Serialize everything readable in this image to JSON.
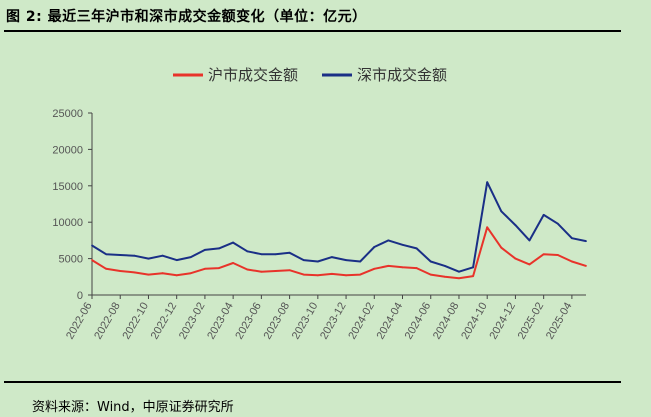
{
  "figure": {
    "title": "图 2:  最近三年沪市和深市成交金额变化（单位：亿元）",
    "source": "资料来源：Wind，中原证券研究所"
  },
  "chart_data": {
    "type": "line",
    "title": "",
    "xlabel": "",
    "ylabel": "",
    "ylim": [
      0,
      25000
    ],
    "yticks": [
      0,
      5000,
      10000,
      15000,
      20000,
      25000
    ],
    "xticks": [
      "2022-06",
      "2022-08",
      "2022-10",
      "2022-12",
      "2023-02",
      "2023-04",
      "2023-06",
      "2023-08",
      "2023-10",
      "2023-12",
      "2024-02",
      "2024-04",
      "2024-06",
      "2024-08",
      "2024-10",
      "2024-12",
      "2025-02",
      "2025-04"
    ],
    "x": [
      "2022-06",
      "2022-07",
      "2022-08",
      "2022-09",
      "2022-10",
      "2022-11",
      "2022-12",
      "2023-01",
      "2023-02",
      "2023-03",
      "2023-04",
      "2023-05",
      "2023-06",
      "2023-07",
      "2023-08",
      "2023-09",
      "2023-10",
      "2023-11",
      "2023-12",
      "2024-01",
      "2024-02",
      "2024-03",
      "2024-04",
      "2024-05",
      "2024-06",
      "2024-07",
      "2024-08",
      "2024-09",
      "2024-10",
      "2024-11",
      "2024-12",
      "2025-01",
      "2025-02",
      "2025-03",
      "2025-04",
      "2025-05"
    ],
    "legend_position": "top-center",
    "series": [
      {
        "name": "沪市成交金额",
        "color": "#e8332a",
        "values": [
          4800,
          3600,
          3300,
          3100,
          2800,
          3000,
          2700,
          3000,
          3600,
          3700,
          4400,
          3500,
          3200,
          3300,
          3400,
          2800,
          2700,
          2900,
          2700,
          2800,
          3600,
          4000,
          3800,
          3700,
          2800,
          2500,
          2300,
          2600,
          9300,
          6500,
          5000,
          4200,
          5600,
          5500,
          4600,
          4000
        ]
      },
      {
        "name": "深市成交金额",
        "color": "#1a2f86",
        "values": [
          6800,
          5600,
          5500,
          5400,
          5000,
          5400,
          4800,
          5200,
          6200,
          6400,
          7200,
          6000,
          5600,
          5600,
          5800,
          4800,
          4600,
          5200,
          4800,
          4600,
          6600,
          7500,
          6900,
          6400,
          4600,
          4000,
          3200,
          3800,
          15500,
          11500,
          9600,
          7500,
          11000,
          9800,
          7800,
          7400
        ]
      }
    ]
  }
}
